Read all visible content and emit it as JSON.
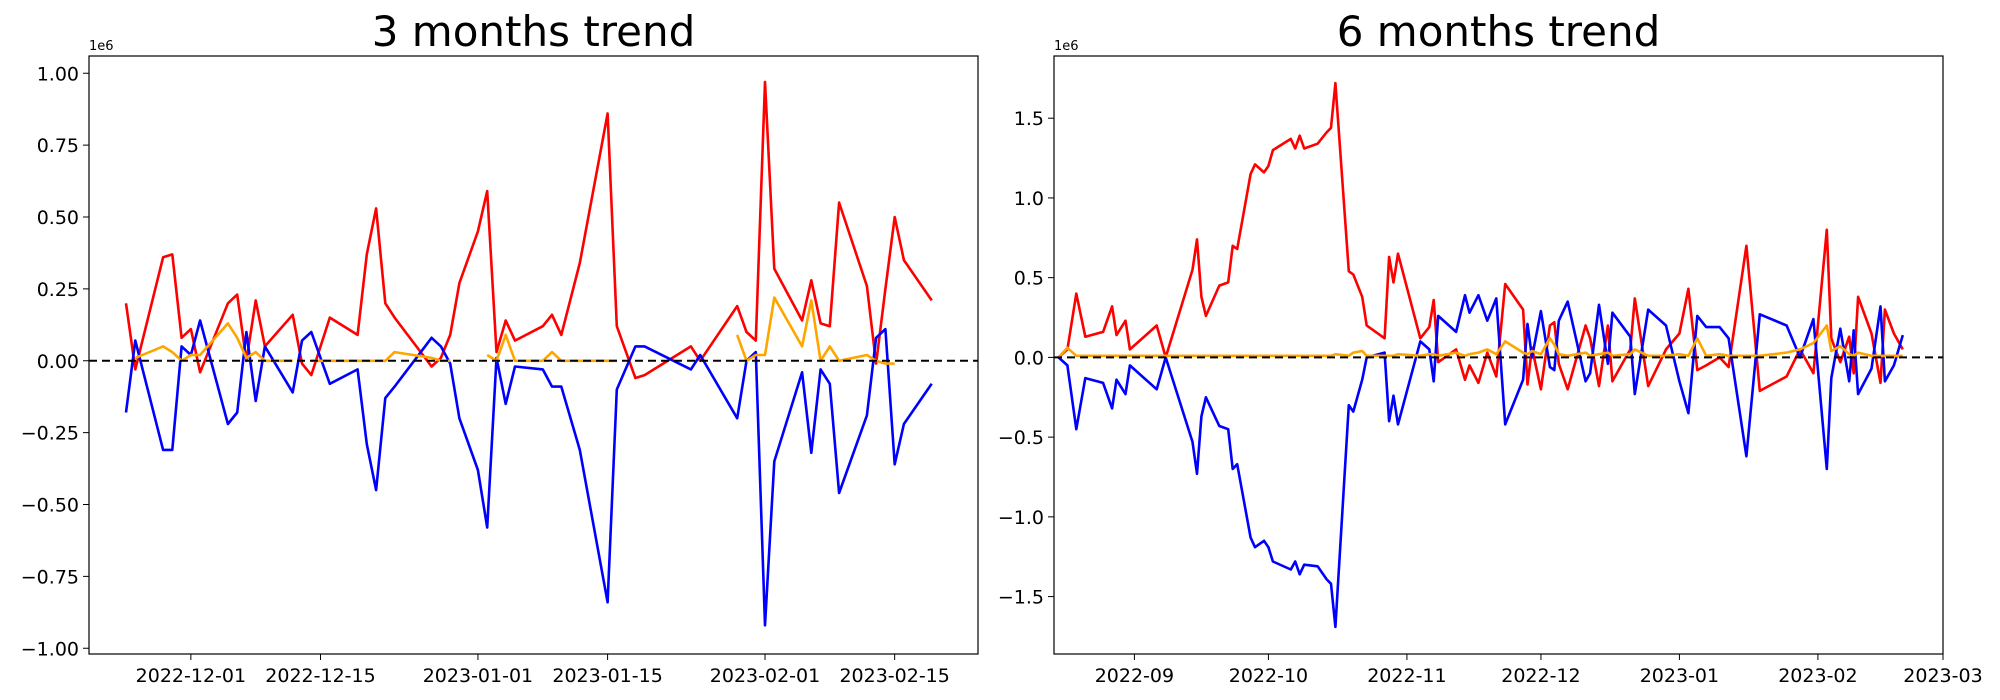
{
  "chart_data": [
    {
      "type": "line",
      "title": "3 months trend",
      "y_offset_label": "1e6",
      "hline": 0,
      "x": [
        "2022-11-24",
        "2022-11-25",
        "2022-11-28",
        "2022-11-29",
        "2022-11-30",
        "2022-12-01",
        "2022-12-02",
        "2022-12-05",
        "2022-12-06",
        "2022-12-07",
        "2022-12-08",
        "2022-12-09",
        "2022-12-12",
        "2022-12-13",
        "2022-12-14",
        "2022-12-16",
        "2022-12-19",
        "2022-12-20",
        "2022-12-21",
        "2022-12-22",
        "2022-12-23",
        "2022-12-27",
        "2022-12-28",
        "2022-12-29",
        "2022-12-30",
        "2023-01-01",
        "2023-01-02",
        "2023-01-03",
        "2023-01-04",
        "2023-01-05",
        "2023-01-08",
        "2023-01-09",
        "2023-01-10",
        "2023-01-12",
        "2023-01-15",
        "2023-01-16",
        "2023-01-18",
        "2023-01-19",
        "2023-01-24",
        "2023-01-25",
        "2023-01-29",
        "2023-01-30",
        "2023-01-31",
        "2023-02-01",
        "2023-02-02",
        "2023-02-05",
        "2023-02-06",
        "2023-02-07",
        "2023-02-08",
        "2023-02-09",
        "2023-02-12",
        "2023-02-13",
        "2023-02-14",
        "2023-02-15",
        "2023-02-16",
        "2023-02-19"
      ],
      "series": [
        {
          "color": "#ff0000",
          "values": [
            0.2,
            -0.03,
            0.36,
            0.37,
            0.08,
            0.11,
            -0.04,
            0.2,
            0.23,
            0.0,
            0.21,
            0.05,
            0.16,
            -0.01,
            -0.05,
            0.15,
            0.09,
            0.37,
            0.53,
            0.2,
            0.15,
            -0.02,
            0.01,
            0.09,
            0.27,
            0.45,
            0.59,
            0.03,
            0.14,
            0.07,
            0.12,
            0.16,
            0.09,
            0.34,
            0.86,
            0.12,
            -0.06,
            -0.05,
            0.05,
            0.0,
            0.19,
            0.1,
            0.07,
            0.97,
            0.32,
            0.14,
            0.28,
            0.13,
            0.12,
            0.55,
            0.26,
            -0.01,
            0.25,
            0.5,
            0.35,
            0.21
          ]
        },
        {
          "color": "#0000ff",
          "values": [
            -0.18,
            0.07,
            -0.31,
            -0.31,
            0.05,
            0.02,
            0.14,
            -0.22,
            -0.18,
            0.1,
            -0.14,
            0.05,
            -0.11,
            0.07,
            0.1,
            -0.08,
            -0.03,
            -0.29,
            -0.45,
            -0.13,
            -0.09,
            0.08,
            0.05,
            -0.01,
            -0.2,
            -0.38,
            -0.58,
            0.01,
            -0.15,
            -0.02,
            -0.03,
            -0.09,
            -0.09,
            -0.31,
            -0.84,
            -0.1,
            0.05,
            0.05,
            -0.03,
            0.02,
            -0.2,
            0.0,
            0.03,
            -0.92,
            -0.35,
            -0.04,
            -0.32,
            -0.03,
            -0.08,
            -0.46,
            -0.19,
            0.08,
            0.11,
            -0.36,
            -0.22,
            -0.08
          ]
        },
        {
          "color": "#ffa500",
          "values": [
            null,
            0.01,
            0.05,
            0.03,
            0.0,
            0.02,
            0.02,
            0.13,
            0.08,
            0.01,
            0.03,
            0.0,
            0.0,
            null,
            0.0,
            0.0,
            0.0,
            0.0,
            0.0,
            0.0,
            0.03,
            0.01,
            0.0,
            0.0,
            null,
            null,
            0.02,
            0.0,
            0.09,
            0.0,
            0.0,
            0.03,
            0.0,
            0.0,
            0.0,
            0.0,
            null,
            null,
            null,
            null,
            0.09,
            0.0,
            0.02,
            0.02,
            0.22,
            0.05,
            0.21,
            0.0,
            0.05,
            0.0,
            0.02,
            0.0,
            -0.01,
            -0.01,
            null,
            null
          ]
        }
      ],
      "xlim": [
        "2022-11-20",
        "2023-02-24"
      ],
      "xticks": [
        "2022-12-01",
        "2022-12-15",
        "2023-01-01",
        "2023-01-15",
        "2023-02-01",
        "2023-02-15"
      ],
      "ylim": [
        -1.02,
        1.06
      ],
      "yticks": [
        {
          "value": -1,
          "label": "−1.00"
        },
        {
          "value": -0.75,
          "label": "−0.75"
        },
        {
          "value": -0.5,
          "label": "−0.50"
        },
        {
          "value": -0.25,
          "label": "−0.25"
        },
        {
          "value": 0,
          "label": "0.00"
        },
        0.25,
        {
          "value": 0.5,
          "label": "0.50"
        },
        0.75,
        {
          "value": 1,
          "label": "1.00"
        }
      ]
    },
    {
      "type": "line",
      "title": "6 months trend",
      "y_offset_label": "1e6",
      "hline": 0,
      "x": [
        "2022-08-15",
        "2022-08-17",
        "2022-08-19",
        "2022-08-21",
        "2022-08-25",
        "2022-08-27",
        "2022-08-28",
        "2022-08-30",
        "2022-08-31",
        "2022-09-06",
        "2022-09-08",
        "2022-09-14",
        "2022-09-15",
        "2022-09-16",
        "2022-09-17",
        "2022-09-20",
        "2022-09-22",
        "2022-09-23",
        "2022-09-24",
        "2022-09-27",
        "2022-09-28",
        "2022-09-30",
        "2022-10-01",
        "2022-10-02",
        "2022-10-06",
        "2022-10-07",
        "2022-10-08",
        "2022-10-09",
        "2022-10-12",
        "2022-10-14",
        "2022-10-15",
        "2022-10-16",
        "2022-10-19",
        "2022-10-20",
        "2022-10-22",
        "2022-10-23",
        "2022-10-27",
        "2022-10-28",
        "2022-10-29",
        "2022-10-30",
        "2022-11-04",
        "2022-11-06",
        "2022-11-07",
        "2022-11-08",
        "2022-11-12",
        "2022-11-14",
        "2022-11-15",
        "2022-11-17",
        "2022-11-19",
        "2022-11-21",
        "2022-11-23",
        "2022-11-27",
        "2022-11-28",
        "2022-11-29",
        "2022-12-01",
        "2022-12-03",
        "2022-12-04",
        "2022-12-05",
        "2022-12-07",
        "2022-12-11",
        "2022-12-12",
        "2022-12-14",
        "2022-12-16",
        "2022-12-17",
        "2022-12-21",
        "2022-12-22",
        "2022-12-25",
        "2022-12-29",
        "2023-01-01",
        "2023-01-03",
        "2023-01-05",
        "2023-01-07",
        "2023-01-10",
        "2023-01-12",
        "2023-01-16",
        "2023-01-19",
        "2023-01-25",
        "2023-01-28",
        "2023-01-31",
        "2023-02-03",
        "2023-02-04",
        "2023-02-06",
        "2023-02-08",
        "2023-02-09",
        "2023-02-10",
        "2023-02-13",
        "2023-02-15",
        "2023-02-16",
        "2023-02-18",
        "2023-02-20"
      ],
      "series": [
        {
          "color": "#ff0000",
          "values": [
            0.0,
            0.05,
            0.4,
            0.13,
            0.16,
            0.32,
            0.14,
            0.23,
            0.05,
            0.2,
            0.0,
            0.55,
            0.74,
            0.38,
            0.26,
            0.45,
            0.47,
            0.7,
            0.68,
            1.15,
            1.21,
            1.16,
            1.2,
            1.3,
            1.37,
            1.31,
            1.39,
            1.31,
            1.34,
            1.41,
            1.44,
            1.72,
            0.54,
            0.52,
            0.38,
            0.2,
            0.12,
            0.63,
            0.47,
            0.65,
            0.12,
            0.19,
            0.36,
            -0.03,
            0.05,
            -0.14,
            -0.05,
            -0.16,
            0.03,
            -0.12,
            0.46,
            0.3,
            -0.17,
            0.06,
            -0.2,
            0.2,
            0.22,
            -0.04,
            -0.2,
            0.2,
            0.12,
            -0.18,
            0.2,
            -0.15,
            0.05,
            0.37,
            -0.18,
            0.05,
            0.15,
            0.43,
            -0.08,
            -0.05,
            0.0,
            -0.06,
            0.7,
            -0.21,
            -0.12,
            0.05,
            -0.1,
            0.8,
            0.12,
            -0.03,
            0.13,
            -0.1,
            0.38,
            0.15,
            -0.16,
            0.3,
            0.15,
            0.05
          ]
        },
        {
          "color": "#0000ff",
          "values": [
            0.0,
            -0.05,
            -0.45,
            -0.13,
            -0.16,
            -0.32,
            -0.14,
            -0.23,
            -0.05,
            -0.2,
            0.0,
            -0.53,
            -0.73,
            -0.37,
            -0.25,
            -0.43,
            -0.45,
            -0.7,
            -0.67,
            -1.13,
            -1.19,
            -1.15,
            -1.19,
            -1.28,
            -1.33,
            -1.28,
            -1.36,
            -1.3,
            -1.31,
            -1.39,
            -1.42,
            -1.69,
            -0.3,
            -0.34,
            -0.14,
            0.0,
            0.03,
            -0.4,
            -0.24,
            -0.42,
            0.1,
            0.05,
            -0.15,
            0.26,
            0.16,
            0.39,
            0.28,
            0.39,
            0.23,
            0.37,
            -0.42,
            -0.14,
            0.21,
            0.0,
            0.29,
            -0.06,
            -0.08,
            0.23,
            0.35,
            -0.15,
            -0.1,
            0.33,
            -0.04,
            0.28,
            0.13,
            -0.23,
            0.3,
            0.2,
            -0.15,
            -0.35,
            0.26,
            0.19,
            0.19,
            0.12,
            -0.62,
            0.27,
            0.2,
            0.0,
            0.24,
            -0.7,
            -0.13,
            0.18,
            -0.15,
            0.17,
            -0.23,
            -0.07,
            0.32,
            -0.15,
            -0.05,
            0.14
          ]
        },
        {
          "color": "#ffa500",
          "values": [
            0.0,
            0.06,
            0.01,
            0.01,
            0.01,
            0.01,
            0.01,
            0.01,
            0.01,
            0.01,
            0.01,
            0.01,
            0.01,
            0.01,
            0.01,
            0.01,
            0.01,
            0.01,
            0.01,
            0.01,
            0.01,
            0.01,
            0.01,
            0.01,
            0.01,
            0.01,
            0.01,
            0.01,
            0.01,
            0.01,
            0.01,
            0.02,
            0.01,
            0.03,
            0.04,
            0.01,
            0.01,
            0.01,
            0.01,
            0.02,
            0.01,
            0.02,
            0.02,
            0.01,
            0.03,
            0.01,
            0.02,
            0.03,
            0.05,
            0.02,
            0.1,
            0.03,
            0.02,
            0.04,
            0.02,
            0.12,
            0.08,
            0.02,
            0.01,
            0.03,
            0.01,
            0.02,
            0.03,
            0.01,
            0.02,
            0.05,
            0.01,
            0.01,
            0.02,
            0.01,
            0.12,
            0.01,
            0.02,
            0.01,
            0.01,
            0.01,
            0.03,
            0.05,
            0.09,
            0.2,
            0.04,
            0.07,
            0.02,
            0.01,
            0.03,
            0.01,
            0.01,
            0.01,
            0.01,
            0.01
          ]
        }
      ],
      "xlim": [
        "2022-08-14",
        "2023-03-01"
      ],
      "xticks": [
        {
          "value": "2022-09-01",
          "label": "2022-09"
        },
        {
          "value": "2022-10-01",
          "label": "2022-10"
        },
        {
          "value": "2022-11-01",
          "label": "2022-11"
        },
        {
          "value": "2022-12-01",
          "label": "2022-12"
        },
        {
          "value": "2023-01-01",
          "label": "2023-01"
        },
        {
          "value": "2023-02-01",
          "label": "2023-02"
        },
        {
          "value": "2023-03-01",
          "label": "2023-03"
        }
      ],
      "ylim": [
        -1.86,
        1.89
      ],
      "yticks": [
        {
          "value": -1.5,
          "label": "−1.5"
        },
        {
          "value": -1,
          "label": "−1.0"
        },
        {
          "value": -0.5,
          "label": "−0.5"
        },
        {
          "value": 0,
          "label": "0.0"
        },
        0.5,
        {
          "value": 1,
          "label": "1.0"
        },
        1.5
      ]
    }
  ]
}
